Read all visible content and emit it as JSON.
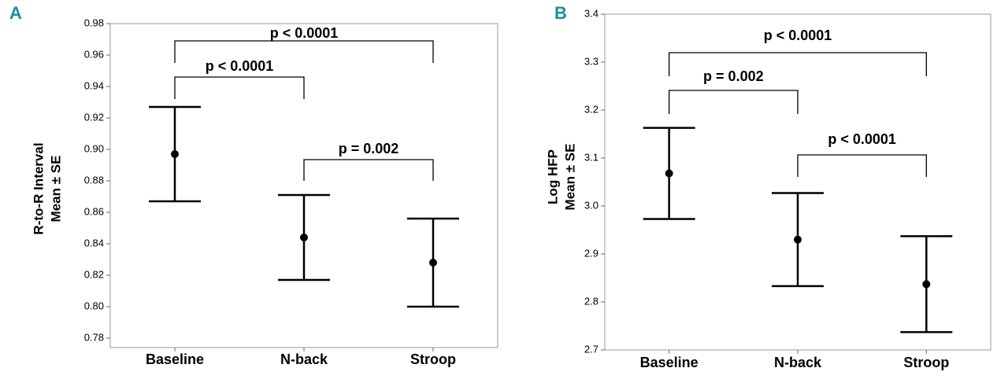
{
  "chart_data": [
    {
      "type": "errorbar",
      "panel": "A",
      "ylabel": [
        "R-to-R Interval",
        "Mean ± SE"
      ],
      "categories": [
        "Baseline",
        "N-back",
        "Stroop"
      ],
      "values": [
        0.897,
        0.844,
        0.828
      ],
      "errors": [
        0.03,
        0.027,
        0.028
      ],
      "color": "#000000",
      "ylim": [
        0.774,
        0.98
      ],
      "yticks": [
        0.78,
        {
          "value": 0.8,
          "label": "0.80"
        },
        0.82,
        0.84,
        0.86,
        0.88,
        {
          "value": 0.9,
          "label": "0.90"
        },
        0.92,
        0.94,
        0.96,
        0.98
      ],
      "annotations": [
        "p < 0.0001",
        "p < 0.0001",
        "p = 0.002"
      ]
    },
    {
      "type": "errorbar",
      "panel": "B",
      "ylabel": [
        "Log HFP",
        "Mean ± SE"
      ],
      "categories": [
        "Baseline",
        "N-back",
        "Stroop"
      ],
      "values": [
        3.068,
        2.93,
        2.837
      ],
      "errors": [
        0.095,
        0.097,
        0.1
      ],
      "color": "#000000",
      "ylim": [
        2.7,
        3.4
      ],
      "yticks": [
        2.7,
        2.8,
        2.9,
        {
          "value": 3.0,
          "label": "3.0"
        },
        3.1,
        3.2,
        3.3,
        3.4
      ],
      "annotations": [
        "p < 0.0001",
        "p = 0.002",
        "p < 0.0001"
      ]
    }
  ]
}
